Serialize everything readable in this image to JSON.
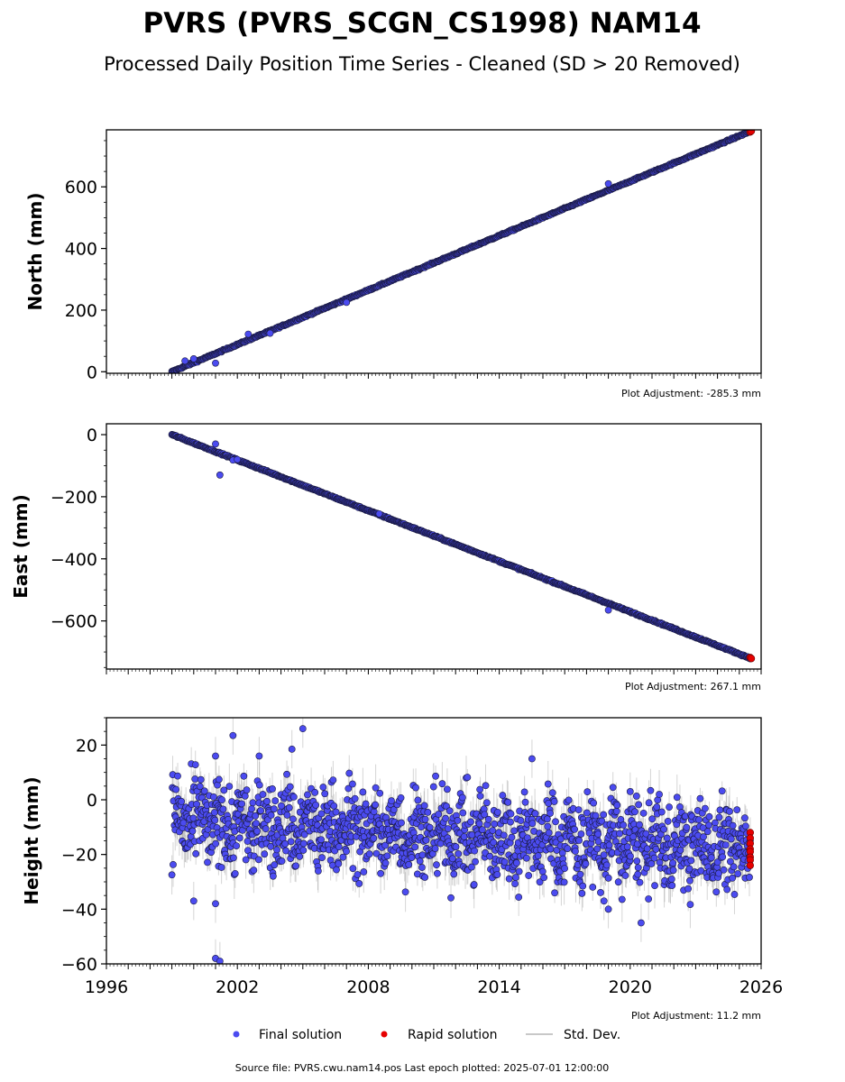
{
  "header": {
    "title": "PVRS (PVRS_SCGN_CS1998) NAM14",
    "subtitle": "Processed Daily Position Time Series - Cleaned (SD > 20 Removed)"
  },
  "footer": {
    "source": "Source file: PVRS.cwu.nam14.pos  Last epoch plotted: 2025-07-01 12:00:00"
  },
  "legend": {
    "final": "Final solution",
    "rapid": "Rapid solution",
    "std": "Std. Dev."
  },
  "colors": {
    "final": "#4b4bf0",
    "rapid": "#e60000",
    "std": "#c8c8c8",
    "edge": "#1a1a40"
  },
  "chart_data": [
    {
      "type": "scatter",
      "panel": "north",
      "ylabel": "North (mm)",
      "adjustment": "Plot Adjustment: -285.3 mm",
      "xlim": [
        1996,
        2026
      ],
      "ylim": [
        -5,
        785
      ],
      "yticks": [
        0,
        200,
        400,
        600
      ],
      "xticks": [
        1996,
        2002,
        2008,
        2014,
        2020,
        2026
      ],
      "show_xtick_labels": false,
      "trend": {
        "start": [
          1999.0,
          0
        ],
        "end": [
          2025.5,
          780
        ],
        "scatter": 3
      },
      "outliers": [
        [
          1999.6,
          35
        ],
        [
          2000.0,
          42
        ],
        [
          2001.0,
          28
        ],
        [
          2002.5,
          122
        ],
        [
          2003.5,
          125
        ],
        [
          2007.0,
          225
        ],
        [
          2019.0,
          610
        ]
      ],
      "rapid": [
        [
          2025.5,
          778
        ],
        [
          2025.55,
          781
        ]
      ]
    },
    {
      "type": "scatter",
      "panel": "east",
      "ylabel": "East (mm)",
      "adjustment": "Plot Adjustment: 267.1 mm",
      "xlim": [
        1996,
        2026
      ],
      "ylim": [
        -755,
        35
      ],
      "yticks": [
        0,
        -200,
        -400,
        -600
      ],
      "xticks": [
        1996,
        2002,
        2008,
        2014,
        2020,
        2026
      ],
      "show_xtick_labels": false,
      "trend": {
        "start": [
          1999.0,
          0
        ],
        "end": [
          2025.5,
          -720
        ],
        "scatter": 3
      },
      "outliers": [
        [
          2001.0,
          -30
        ],
        [
          2001.2,
          -130
        ],
        [
          2001.8,
          -82
        ],
        [
          2002.0,
          -80
        ],
        [
          2019.0,
          -565
        ],
        [
          2008.5,
          -255
        ]
      ],
      "rapid": [
        [
          2025.5,
          -718
        ],
        [
          2025.55,
          -721
        ]
      ]
    },
    {
      "type": "scatter",
      "panel": "height",
      "ylabel": "Height (mm)",
      "adjustment": "Plot Adjustment: 11.2 mm",
      "xlim": [
        1996,
        2026
      ],
      "ylim": [
        -60,
        30
      ],
      "yticks": [
        20,
        0,
        -20,
        -40,
        -60
      ],
      "xticks": [
        1996,
        2002,
        2008,
        2014,
        2020,
        2026
      ],
      "xtick_labels": [
        "1996",
        "2002",
        "2008",
        "2014",
        "2020",
        "2026"
      ],
      "show_xtick_labels": true,
      "trend": {
        "start": [
          1999.0,
          -8
        ],
        "end": [
          2025.5,
          -18
        ],
        "scatter": 10
      },
      "outliers": [
        [
          2001.0,
          16
        ],
        [
          2001.8,
          23.5
        ],
        [
          2003.0,
          16
        ],
        [
          2004.5,
          18.5
        ],
        [
          2005.0,
          26
        ],
        [
          2000.0,
          -37
        ],
        [
          2001.0,
          -58
        ],
        [
          2001.2,
          -59
        ],
        [
          2001.0,
          -38
        ],
        [
          2015.5,
          15
        ],
        [
          2020.0,
          3
        ],
        [
          2020.5,
          -45
        ],
        [
          2019.0,
          -40
        ],
        [
          2018.8,
          -37
        ]
      ],
      "rapid": [
        [
          2025.5,
          -12
        ],
        [
          2025.5,
          -14
        ],
        [
          2025.5,
          -16
        ],
        [
          2025.5,
          -18
        ],
        [
          2025.5,
          -19
        ],
        [
          2025.5,
          -21
        ],
        [
          2025.5,
          -22
        ],
        [
          2025.5,
          -24
        ]
      ]
    }
  ]
}
